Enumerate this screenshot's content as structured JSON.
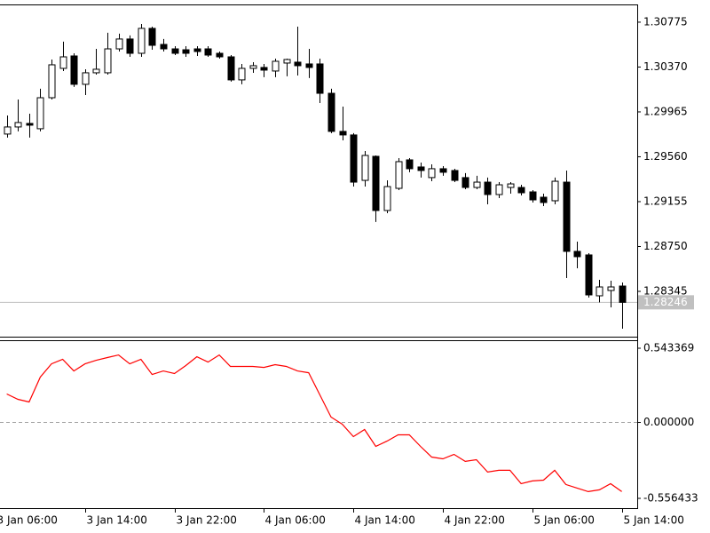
{
  "chart_data": [
    {
      "type": "candlestick",
      "categories": [
        "3 Jan 06:00",
        null,
        null,
        null,
        null,
        null,
        null,
        null,
        "3 Jan 14:00",
        null,
        null,
        null,
        null,
        null,
        null,
        null,
        "3 Jan 22:00",
        null,
        null,
        null,
        null,
        null,
        null,
        null,
        "4 Jan 06:00",
        null,
        null,
        null,
        null,
        null,
        null,
        null,
        "4 Jan 14:00",
        null,
        null,
        null,
        null,
        null,
        null,
        null,
        "4 Jan 22:00",
        null,
        null,
        null,
        null,
        null,
        null,
        null,
        "5 Jan 06:00",
        null,
        null,
        null,
        null,
        null,
        null,
        null,
        "5 Jan 14:00"
      ],
      "open": [
        null,
        1.29765,
        1.29829,
        1.29861,
        1.29813,
        1.30093,
        1.30358,
        1.3047,
        1.30214,
        1.30318,
        1.30318,
        1.30534,
        1.30623,
        1.30494,
        1.30719,
        1.30574,
        1.30534,
        1.30526,
        1.30534,
        1.30534,
        1.30494,
        1.30462,
        1.30254,
        1.30358,
        1.30366,
        1.30334,
        1.30406,
        1.30414,
        1.30398,
        1.30398,
        1.30133,
        1.29789,
        1.29757,
        1.29347,
        1.29564,
        1.29075,
        1.29275,
        1.29532,
        1.29468,
        1.29372,
        1.29452,
        1.29436,
        1.29372,
        1.29283,
        1.29331,
        1.29219,
        1.29283,
        1.29283,
        1.29243,
        1.29195,
        1.29163,
        1.29331,
        1.28706,
        1.28674,
        1.28305,
        1.28353,
        1.28393
      ],
      "high": [
        null,
        1.29933,
        1.30077,
        1.29949,
        1.30174,
        1.30438,
        1.30599,
        1.30494,
        1.3035,
        1.30534,
        1.30679,
        1.30671,
        1.30655,
        1.30759,
        1.30735,
        1.30623,
        1.30558,
        1.30558,
        1.30558,
        1.30558,
        1.3051,
        1.30478,
        1.30398,
        1.30414,
        1.30398,
        1.30446,
        1.30446,
        1.30735,
        1.30534,
        1.30446,
        1.30174,
        1.30013,
        1.29773,
        1.29612,
        1.29572,
        1.29347,
        1.29548,
        1.29548,
        1.29508,
        1.29492,
        1.29476,
        1.29452,
        1.29412,
        1.29388,
        1.29372,
        1.29331,
        1.29331,
        1.29307,
        1.29259,
        1.29227,
        1.29372,
        1.29436,
        1.28794,
        1.2869,
        1.28449,
        1.28441,
        1.28425
      ],
      "low": [
        null,
        1.29733,
        1.29789,
        1.29733,
        1.29789,
        1.30077,
        1.30334,
        1.3019,
        1.30117,
        1.30302,
        1.30302,
        1.3051,
        1.30462,
        1.30462,
        1.30526,
        1.3051,
        1.30478,
        1.30462,
        1.3047,
        1.30462,
        1.30446,
        1.30238,
        1.30214,
        1.30318,
        1.30278,
        1.30278,
        1.30286,
        1.30294,
        1.3027,
        1.30045,
        1.29773,
        1.29708,
        1.29291,
        1.29291,
        1.28971,
        1.29051,
        1.29259,
        1.2942,
        1.29372,
        1.29339,
        1.29388,
        1.29331,
        1.29267,
        1.29267,
        1.29131,
        1.29187,
        1.29227,
        1.29211,
        1.29147,
        1.29115,
        1.29131,
        1.28465,
        1.28553,
        1.28289,
        1.28246,
        1.28201,
        1.28008
      ],
      "close": [
        null,
        1.29829,
        1.29869,
        1.29845,
        1.30093,
        1.3039,
        1.30462,
        1.30214,
        1.30318,
        1.3035,
        1.30534,
        1.30623,
        1.30494,
        1.30719,
        1.30566,
        1.30534,
        1.30494,
        1.30494,
        1.3051,
        1.30478,
        1.30462,
        1.30254,
        1.30358,
        1.30382,
        1.30342,
        1.30422,
        1.30438,
        1.30382,
        1.30366,
        1.30133,
        1.29789,
        1.29757,
        1.29331,
        1.29572,
        1.29075,
        1.29291,
        1.29516,
        1.29452,
        1.29436,
        1.29452,
        1.2942,
        1.29347,
        1.29283,
        1.29331,
        1.29219,
        1.29307,
        1.29315,
        1.29235,
        1.29171,
        1.29147,
        1.29339,
        1.28706,
        1.28658,
        1.28313,
        1.28385,
        1.28385,
        1.28246
      ],
      "up_color": "#ffffff",
      "down_color": "#000000",
      "ylim": [
        1.27936,
        1.30935
      ],
      "yticks": [
        1.30775,
        {
          "value": 1.3037,
          "label": "1.30370"
        },
        1.29965,
        {
          "value": 1.2956,
          "label": "1.29560"
        },
        1.29155,
        {
          "value": 1.2875,
          "label": "1.28750"
        },
        1.28345
      ],
      "current_price": 1.28246
    },
    {
      "type": "line",
      "values": [
        null,
        0.208,
        0.169,
        0.15,
        0.332,
        0.429,
        0.462,
        0.377,
        0.429,
        0.455,
        0.475,
        0.494,
        0.429,
        0.462,
        0.351,
        0.377,
        0.358,
        0.416,
        0.481,
        0.442,
        0.494,
        0.41,
        0.41,
        0.41,
        0.403,
        0.423,
        0.41,
        0.377,
        0.364,
        0.202,
        0.039,
        -0.013,
        -0.104,
        -0.052,
        -0.176,
        -0.137,
        -0.091,
        -0.091,
        -0.176,
        -0.254,
        -0.267,
        -0.234,
        -0.286,
        -0.273,
        -0.364,
        -0.351,
        -0.351,
        -0.449,
        -0.429,
        -0.423,
        -0.351,
        -0.455,
        -0.481,
        -0.507,
        -0.494,
        -0.449,
        -0.507
      ],
      "color": "#ff0000",
      "ylim": [
        -0.628,
        0.602
      ],
      "yticks": [
        0.543369,
        {
          "value": 0,
          "label": "0.000000"
        },
        -0.556433
      ]
    }
  ]
}
